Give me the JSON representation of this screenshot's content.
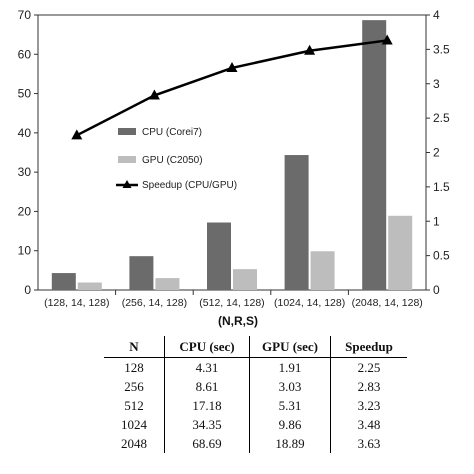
{
  "chart_data": {
    "type": "bar",
    "title": "",
    "xlabel": "(N,R,S)",
    "categories": [
      "(128, 14, 128)",
      "(256, 14, 128)",
      "(512, 14, 128)",
      "(1024, 14, 128)",
      "(2048, 14, 128)"
    ],
    "series": [
      {
        "name": "CPU (Corei7)",
        "type": "bar",
        "axis": "left",
        "color": "#6b6b6b",
        "values": [
          4.31,
          8.61,
          17.18,
          34.35,
          68.69
        ]
      },
      {
        "name": "GPU (C2050)",
        "type": "bar",
        "axis": "left",
        "color": "#bdbdbd",
        "values": [
          1.91,
          3.03,
          5.31,
          9.86,
          18.89
        ]
      },
      {
        "name": "Speedup (CPU/GPU)",
        "type": "line",
        "marker": "triangle",
        "axis": "right",
        "color": "#000000",
        "values": [
          2.25,
          2.83,
          3.23,
          3.48,
          3.63
        ]
      }
    ],
    "ylim_left": [
      0,
      70
    ],
    "yticks_left": [
      "0",
      "10",
      "20",
      "30",
      "40",
      "50",
      "60",
      "70"
    ],
    "ylim_right": [
      0,
      4
    ],
    "yticks_right": [
      "0",
      "0.5",
      "1",
      "1.5",
      "2",
      "2.5",
      "3",
      "3.5",
      "4"
    ],
    "grid": false,
    "legend": "center-left"
  },
  "table": {
    "headers": [
      "N",
      "CPU (sec)",
      "GPU (sec)",
      "Speedup"
    ],
    "rows": [
      [
        "128",
        "4.31",
        "1.91",
        "2.25"
      ],
      [
        "256",
        "8.61",
        "3.03",
        "2.83"
      ],
      [
        "512",
        "17.18",
        "5.31",
        "3.23"
      ],
      [
        "1024",
        "34.35",
        "9.86",
        "3.48"
      ],
      [
        "2048",
        "68.69",
        "18.89",
        "3.63"
      ]
    ]
  }
}
